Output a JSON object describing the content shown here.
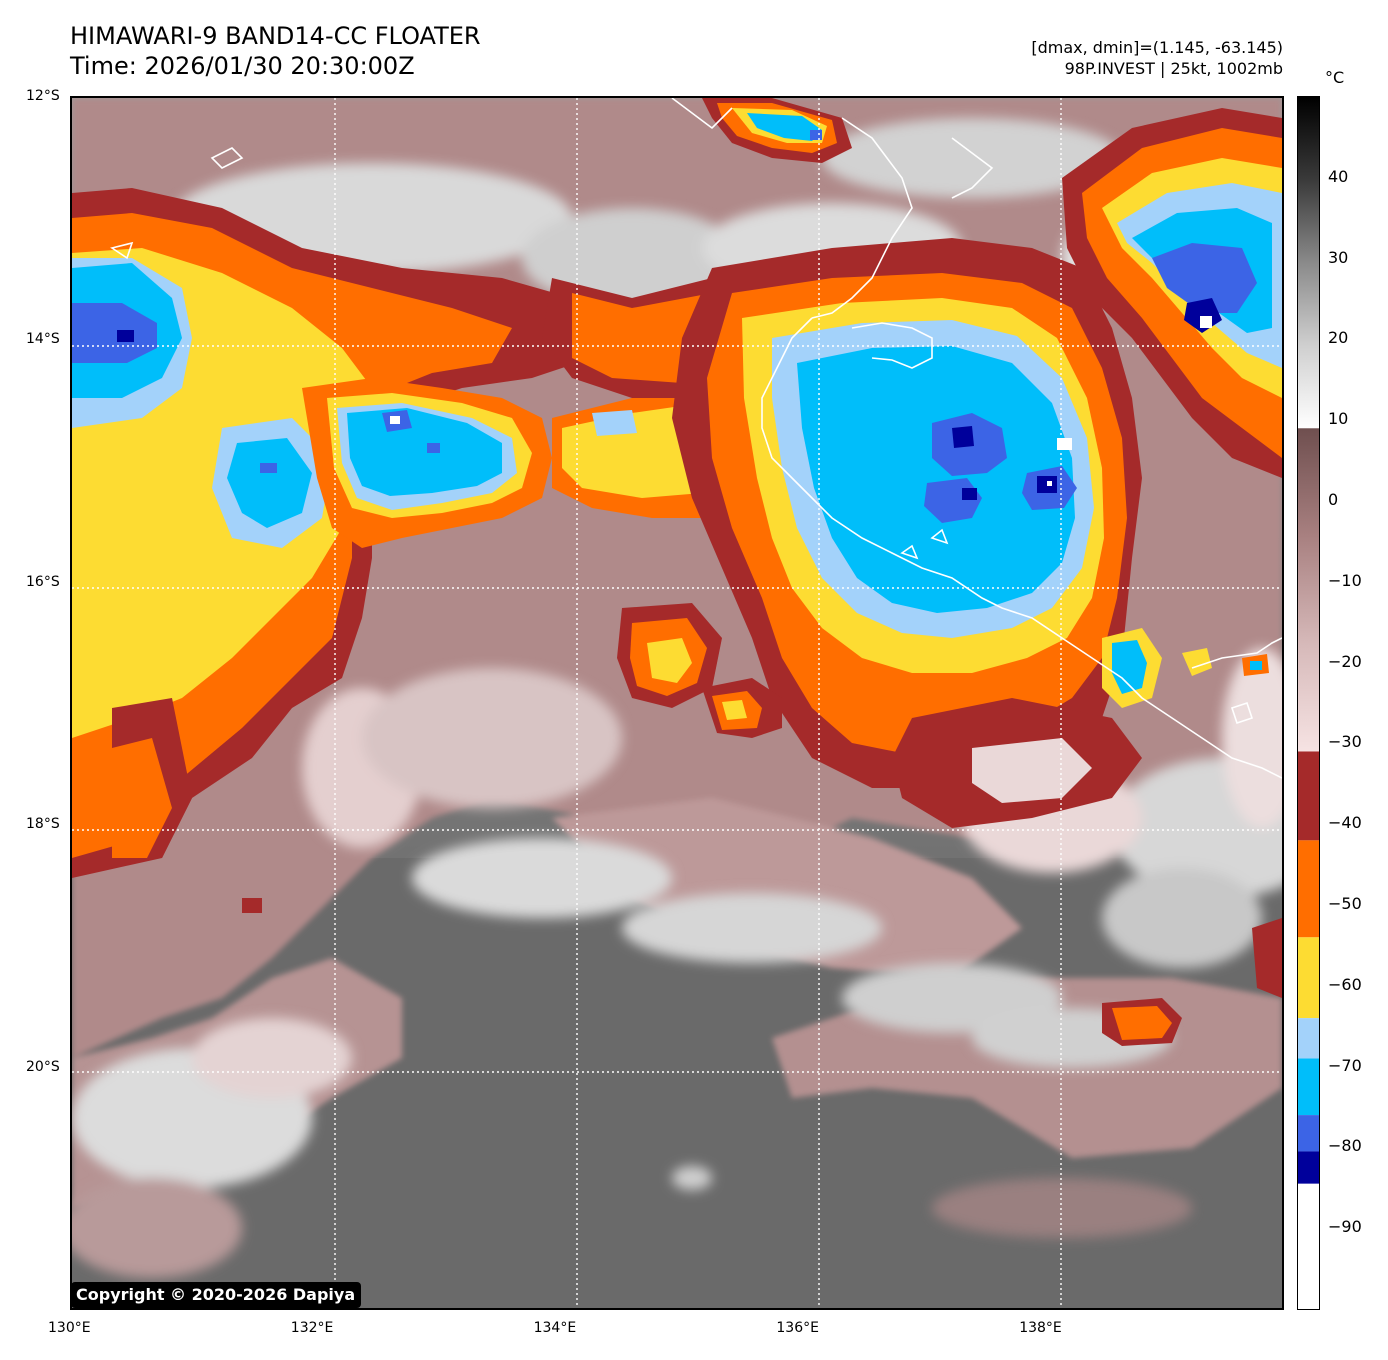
{
  "header": {
    "title_line1": "HIMAWARI-9 BAND14-CC FLOATER",
    "title_line2": "Time: 2026/01/30 20:30:00Z",
    "meta_line1": "[dmax, dmin]=(1.145, -63.145)",
    "meta_line2": "98P.INVEST | 25kt, 1002mb"
  },
  "map": {
    "lon_range": [
      130,
      140
    ],
    "lat_range": [
      -12,
      -22
    ],
    "lon_ticks": [
      {
        "value": 130,
        "label": "130°E"
      },
      {
        "value": 132,
        "label": "132°E"
      },
      {
        "value": 134,
        "label": "134°E"
      },
      {
        "value": 136,
        "label": "136°E"
      },
      {
        "value": 138,
        "label": "138°E"
      }
    ],
    "lat_ticks": [
      {
        "value": -12,
        "label": "12°S"
      },
      {
        "value": -14,
        "label": "14°S"
      },
      {
        "value": -16,
        "label": "16°S"
      },
      {
        "value": -18,
        "label": "18°S"
      },
      {
        "value": -20,
        "label": "20°S"
      }
    ],
    "gridlines": "dotted white",
    "copyright": "Copyright © 2020-2026 Dapiya"
  },
  "colorbar": {
    "unit": "°C",
    "range": [
      -100,
      50
    ],
    "ticks": [
      {
        "value": 40,
        "label": "40"
      },
      {
        "value": 30,
        "label": "30"
      },
      {
        "value": 20,
        "label": "20"
      },
      {
        "value": 10,
        "label": "10"
      },
      {
        "value": 0,
        "label": "0"
      },
      {
        "value": -10,
        "label": "−10"
      },
      {
        "value": -20,
        "label": "−20"
      },
      {
        "value": -30,
        "label": "−30"
      },
      {
        "value": -40,
        "label": "−40"
      },
      {
        "value": -50,
        "label": "−50"
      },
      {
        "value": -60,
        "label": "−60"
      },
      {
        "value": -70,
        "label": "−70"
      },
      {
        "value": -80,
        "label": "−80"
      },
      {
        "value": -90,
        "label": "−90"
      }
    ],
    "bands": [
      {
        "from": 9,
        "to": 50,
        "kind": "gray",
        "colors": [
          "#ffffff",
          "#cfcfcf",
          "#8a8a8a",
          "#3a3a3a",
          "#000000"
        ]
      },
      {
        "from": -31,
        "to": 9,
        "kind": "gradient",
        "colors": [
          "#f6e3e3",
          "#d6b9b9",
          "#a88080",
          "#6f4f4f"
        ]
      },
      {
        "from": -42,
        "to": -31,
        "color": "#a52a2a"
      },
      {
        "from": -54,
        "to": -42,
        "color": "#ff6e00"
      },
      {
        "from": -64,
        "to": -54,
        "color": "#fddc32"
      },
      {
        "from": -69,
        "to": -64,
        "color": "#a3d2fa"
      },
      {
        "from": -76,
        "to": -69,
        "color": "#00befa"
      },
      {
        "from": -80.5,
        "to": -76,
        "color": "#3c64e6"
      },
      {
        "from": -84.5,
        "to": -80.5,
        "color": "#00009b"
      },
      {
        "from": -100,
        "to": -84.5,
        "color": "#ffffff"
      }
    ]
  },
  "palette": {
    "ocean_gray": "#686868",
    "land_gray": "#8f8f8f",
    "warm_cloud": "#b99494",
    "light_cloud": "#e6cccc",
    "dark_red": "#a52a2a",
    "orange": "#ff6e00",
    "yellow": "#fddc32",
    "light_blue": "#a3d2fa",
    "cyan": "#00befa",
    "royal_blue": "#3c64e6",
    "navy": "#00009b",
    "white": "#ffffff"
  }
}
